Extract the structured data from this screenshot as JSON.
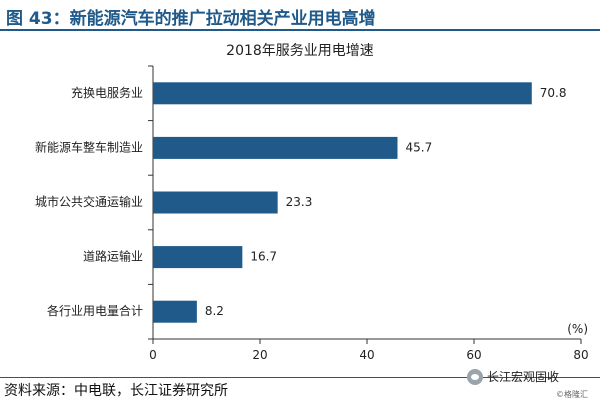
{
  "figure": {
    "title": "图 43：新能源汽车的推广拉动相关产业用电高增"
  },
  "chart_data": {
    "type": "bar",
    "orientation": "horizontal",
    "title": "2018年服务业用电增速",
    "categories": [
      "充换电服务业",
      "新能源车整车制造业",
      "城市公共交通运输业",
      "道路运输业",
      "各行业用电量合计"
    ],
    "values": [
      70.8,
      45.7,
      23.3,
      16.7,
      8.2
    ],
    "value_labels": [
      "70.8",
      "45.7",
      "23.3",
      "16.7",
      "8.2"
    ],
    "unit_label": "(%)",
    "xlim": [
      0,
      80
    ],
    "xticks": [
      0,
      20,
      40,
      60,
      80
    ],
    "bar_color": "#1f5a8a",
    "grid": false
  },
  "footer": {
    "source": "资料来源：中电联，长江证券研究所",
    "wechat": "长江宏观固收",
    "credit": "©格隆汇"
  }
}
